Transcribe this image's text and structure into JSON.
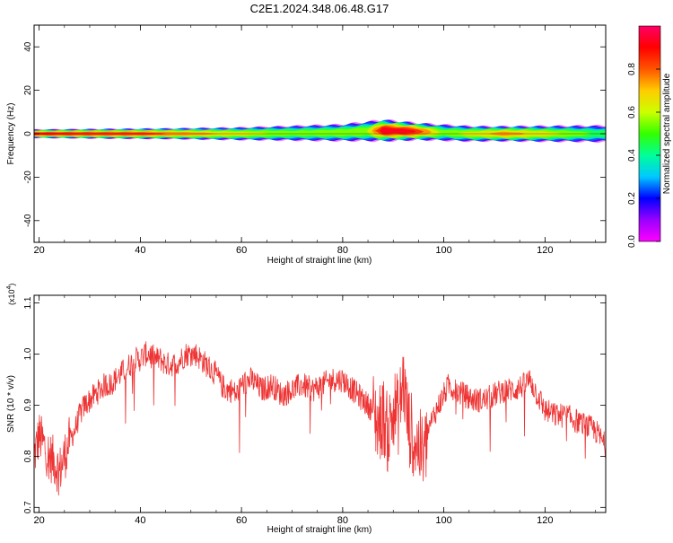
{
  "title": "C2E1.2024.348.06.48.G17",
  "chart_data": [
    {
      "type": "heatmap",
      "xlabel": "Height of straight line (km)",
      "ylabel": "Frequency (Hz)",
      "xlim": [
        19,
        132
      ],
      "ylim": [
        -50,
        50
      ],
      "xticks": [
        20,
        40,
        60,
        80,
        100,
        120
      ],
      "yticks": [
        -40,
        -20,
        0,
        20,
        40
      ],
      "colorbar": {
        "label": "Normalized spectral amplitude",
        "range": [
          0,
          1
        ],
        "ticks": [
          "0.0",
          "0.2",
          "0.4",
          "0.6",
          "0.8"
        ],
        "colors": [
          "#ff00ff",
          "#9900ff",
          "#0000ff",
          "#00c8ff",
          "#00ff99",
          "#33ff00",
          "#ccff00",
          "#ffcc00",
          "#ff5500",
          "#ff0000",
          "#ff0066"
        ]
      },
      "band": {
        "center_frequency": [
          [
            19,
            0
          ],
          [
            40,
            0
          ],
          [
            60,
            0
          ],
          [
            80,
            0.5
          ],
          [
            88,
            1.5
          ],
          [
            95,
            1
          ],
          [
            105,
            0
          ],
          [
            120,
            0
          ],
          [
            132,
            0
          ]
        ],
        "half_width": [
          [
            19,
            2
          ],
          [
            45,
            2.5
          ],
          [
            60,
            3
          ],
          [
            80,
            4
          ],
          [
            88,
            5
          ],
          [
            95,
            4
          ],
          [
            110,
            3.5
          ],
          [
            132,
            4
          ]
        ],
        "peak_amplitude": [
          [
            19,
            0.95
          ],
          [
            40,
            0.9
          ],
          [
            55,
            0.75
          ],
          [
            70,
            0.6
          ],
          [
            85,
            0.65
          ],
          [
            88,
            1.0
          ],
          [
            94,
            0.95
          ],
          [
            100,
            0.6
          ],
          [
            112,
            0.8
          ],
          [
            120,
            0.7
          ],
          [
            132,
            0.5
          ]
        ]
      }
    },
    {
      "type": "line",
      "xlabel": "Height of straight line (km)",
      "ylabel": "SNR (10 * v/v)",
      "multiplier": "(x10",
      "multiplier_exp": "4",
      "multiplier_close": ")",
      "xlim": [
        19,
        132
      ],
      "ylim": [
        0.69,
        1.115
      ],
      "xticks": [
        20,
        40,
        60,
        80,
        100,
        120
      ],
      "yticks": [
        "0.7",
        "0.8",
        "0.9",
        "1.0",
        "1.1"
      ],
      "line_color": "#ee3333",
      "series": [
        {
          "x": [
            19,
            20,
            21,
            22,
            23,
            24,
            25,
            26,
            27,
            28,
            29,
            30,
            31,
            32,
            33,
            34,
            35,
            36,
            37,
            38,
            39,
            40,
            41,
            42,
            43,
            44,
            45,
            46,
            47,
            48,
            49,
            50,
            51,
            52,
            53,
            54,
            55,
            56,
            57,
            58,
            59,
            60,
            62,
            64,
            66,
            68,
            70,
            72,
            74,
            76,
            78,
            80,
            82,
            84,
            86,
            87,
            88,
            89,
            90,
            91,
            92,
            93,
            94,
            95,
            96,
            97,
            98,
            99,
            100,
            101,
            102,
            104,
            106,
            108,
            110,
            112,
            114,
            116,
            117,
            118,
            120,
            122,
            124,
            126,
            128,
            130,
            132
          ],
          "y": [
            0.8,
            0.84,
            0.82,
            0.8,
            0.79,
            0.77,
            0.8,
            0.83,
            0.85,
            0.88,
            0.9,
            0.91,
            0.92,
            0.93,
            0.94,
            0.94,
            0.95,
            0.96,
            0.97,
            0.98,
            0.99,
            0.99,
            1.0,
            1.0,
            0.99,
            0.99,
            0.98,
            0.98,
            0.98,
            0.99,
            1.0,
            1.0,
            1.0,
            0.99,
            0.98,
            0.97,
            0.96,
            0.94,
            0.93,
            0.93,
            0.92,
            0.94,
            0.95,
            0.93,
            0.94,
            0.92,
            0.93,
            0.94,
            0.93,
            0.94,
            0.95,
            0.95,
            0.93,
            0.91,
            0.89,
            0.86,
            0.88,
            0.84,
            0.9,
            0.88,
            0.95,
            0.86,
            0.84,
            0.82,
            0.8,
            0.85,
            0.88,
            0.9,
            0.92,
            0.94,
            0.93,
            0.92,
            0.91,
            0.91,
            0.92,
            0.93,
            0.93,
            0.94,
            0.95,
            0.93,
            0.89,
            0.88,
            0.88,
            0.87,
            0.86,
            0.85,
            0.82
          ]
        }
      ]
    }
  ]
}
